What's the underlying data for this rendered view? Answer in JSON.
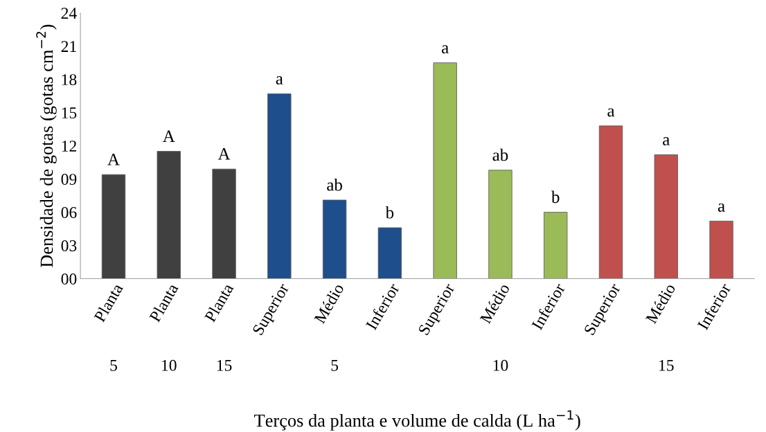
{
  "chart_data": {
    "type": "bar",
    "xlabel": "Terços da planta e volume de calda (L ha$^{−1}$)",
    "ylabel": "Densidade de gotas (gotas cm$^{−2}$)",
    "categories": [
      "Planta",
      "Planta",
      "Planta",
      "Superior",
      "Médio",
      "Inferior",
      "Superior",
      "Médio",
      "Inferior",
      "Superior",
      "Médio",
      "Inferior"
    ],
    "values": [
      9.4,
      11.5,
      9.9,
      16.7,
      7.1,
      4.6,
      19.5,
      9.8,
      6.0,
      13.8,
      11.2,
      5.2
    ],
    "colors": [
      "#404040",
      "#404040",
      "#404040",
      "#1f4e8c",
      "#1f4e8c",
      "#1f4e8c",
      "#9bbb59",
      "#9bbb59",
      "#9bbb59",
      "#c0504d",
      "#c0504d",
      "#c0504d"
    ],
    "value_labels": [
      "A",
      "A",
      "A",
      "a",
      "ab",
      "b",
      "a",
      "ab",
      "b",
      "a",
      "a",
      "a"
    ],
    "annotations": [
      "5",
      "10",
      "15",
      "5",
      "10",
      "15"
    ],
    "ylim": [
      0,
      24
    ],
    "yticks": [
      {
        "value": 0,
        "label": "00"
      },
      {
        "value": 3,
        "label": "03"
      },
      {
        "value": 6,
        "label": "06"
      },
      {
        "value": 9,
        "label": "09"
      },
      {
        "value": 12,
        "label": "12"
      },
      {
        "value": 15,
        "label": "15"
      },
      {
        "value": 18,
        "label": "18"
      },
      {
        "value": 21,
        "label": "21"
      },
      {
        "value": 24,
        "label": "24"
      }
    ],
    "grid": false,
    "legend": false
  }
}
